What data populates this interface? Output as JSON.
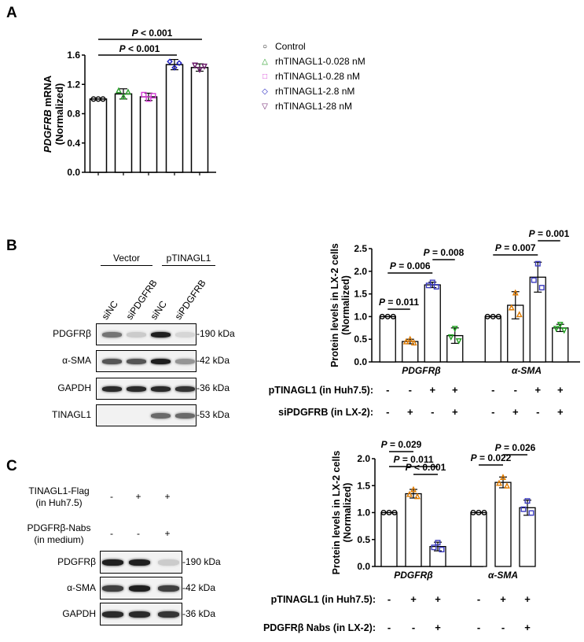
{
  "panels": {
    "A": {
      "letter": "A"
    },
    "B": {
      "letter": "B"
    },
    "C": {
      "letter": "C"
    }
  },
  "chart_data": [
    {
      "id": "A",
      "type": "bar",
      "title": "",
      "ylabel": "PDGFRB mRNA (Normalized)",
      "ylabel_italic_part": "PDGFRB",
      "ylabel_rest": " mRNA",
      "ylabel_line2": "(Normalized)",
      "ylim": [
        0,
        1.6
      ],
      "yticks": [
        "0.0",
        "0.4",
        "0.8",
        "1.2",
        "1.6"
      ],
      "categories": [
        "Control",
        "rhTINAGL1-0.028 nM",
        "rhTINAGL1-0.28 nM",
        "rhTINAGL1-2.8 nM",
        "rhTINAGL1-28 nM"
      ],
      "values": [
        1.0,
        1.07,
        1.03,
        1.47,
        1.43
      ],
      "errors": [
        0.0,
        0.07,
        0.05,
        0.07,
        0.05
      ],
      "markers": [
        "circle",
        "triangle",
        "square",
        "diamond",
        "triangle-down"
      ],
      "colors": [
        "#000000",
        "#2ca02c",
        "#d63fd6",
        "#1f1fbf",
        "#6a1b6a"
      ],
      "legend": [
        {
          "label": "Control",
          "marker": "circle",
          "color": "#000000"
        },
        {
          "label": "rhTINAGL1-0.028 nM",
          "marker": "triangle",
          "color": "#2ca02c"
        },
        {
          "label": "rhTINAGL1-0.28 nM",
          "marker": "square",
          "color": "#d63fd6"
        },
        {
          "label": "rhTINAGL1-2.8 nM",
          "marker": "diamond",
          "color": "#1f1fbf"
        },
        {
          "label": "rhTINAGL1-28 nM",
          "marker": "triangle-down",
          "color": "#6a1b6a"
        }
      ],
      "annotations": [
        {
          "text": "P < 0.001",
          "from": 0,
          "to": 3
        },
        {
          "text": "P < 0.001",
          "from": 0,
          "to": 4
        }
      ]
    },
    {
      "id": "B",
      "type": "bar",
      "ylabel": "Protein levels in LX-2 cells",
      "ylabel_line2": "(Normalized)",
      "ylim": [
        0,
        2.5
      ],
      "yticks": [
        "0.0",
        "0.5",
        "1.0",
        "1.5",
        "2.0",
        "2.5"
      ],
      "groups": [
        "PDGFRβ",
        "α-SMA"
      ],
      "series": [
        {
          "name": "Vector + siNC",
          "values": [
            1.0,
            1.0
          ],
          "errors": [
            0.0,
            0.0
          ],
          "color": "#000000",
          "marker": "circle"
        },
        {
          "name": "Vector + siPDGFRB",
          "values": [
            0.45,
            1.25
          ],
          "errors": [
            0.05,
            0.3
          ],
          "color": "#e07b00",
          "marker": "triangle"
        },
        {
          "name": "pTINAGL1 + siNC",
          "values": [
            1.7,
            1.87
          ],
          "errors": [
            0.06,
            0.33
          ],
          "color": "#3b3bbf",
          "marker": "square"
        },
        {
          "name": "pTINAGL1 + siPDGFRB",
          "values": [
            0.58,
            0.75
          ],
          "errors": [
            0.17,
            0.08
          ],
          "color": "#1fa01f",
          "marker": "triangle-down"
        }
      ],
      "annotations": [
        {
          "text": "P = 0.011",
          "group": 0,
          "from": 0,
          "to": 1
        },
        {
          "text": "P = 0.006",
          "group": 0,
          "from": 0,
          "to": 2
        },
        {
          "text": "P = 0.008",
          "group": 0,
          "from": 2,
          "to": 3
        },
        {
          "text": "P = 0.007",
          "group": 1,
          "from": 0,
          "to": 2
        },
        {
          "text": "P = 0.001",
          "group": 1,
          "from": 2,
          "to": 3
        }
      ],
      "conditions": [
        {
          "label": "pTINAGL1 (in Huh7.5):",
          "values": [
            "-",
            "-",
            "+",
            "+",
            "-",
            "-",
            "+",
            "+"
          ]
        },
        {
          "label": "siPDGFRB (in LX-2):",
          "values": [
            "-",
            "+",
            "-",
            "+",
            "-",
            "+",
            "-",
            "+"
          ]
        }
      ]
    },
    {
      "id": "C",
      "type": "bar",
      "ylabel": "Protein levels in LX-2 cells",
      "ylabel_line2": "(Normalized)",
      "ylim": [
        0,
        2.0
      ],
      "yticks": [
        "0.0",
        "0.5",
        "1.0",
        "1.5",
        "2.0"
      ],
      "groups": [
        "PDGFRβ",
        "α-SMA"
      ],
      "series": [
        {
          "name": "Control",
          "values": [
            1.0,
            1.0
          ],
          "errors": [
            0.0,
            0.0
          ],
          "color": "#000000",
          "marker": "circle"
        },
        {
          "name": "pTINAGL1",
          "values": [
            1.35,
            1.56
          ],
          "errors": [
            0.08,
            0.1
          ],
          "color": "#e07b00",
          "marker": "triangle"
        },
        {
          "name": "pTINAGL1 + PDGFRβ Nabs",
          "values": [
            0.37,
            1.09
          ],
          "errors": [
            0.08,
            0.14
          ],
          "color": "#3b3bbf",
          "marker": "square"
        }
      ],
      "annotations": [
        {
          "text": "P = 0.029",
          "group": 0,
          "from": 0,
          "to": 1
        },
        {
          "text": "P = 0.011",
          "group": 0,
          "from": 0,
          "to": 2
        },
        {
          "text": "P < 0.001",
          "group": 0,
          "from": 1,
          "to": 2
        },
        {
          "text": "P = 0.022",
          "group": 1,
          "from": 0,
          "to": 1
        },
        {
          "text": "P = 0.026",
          "group": 1,
          "from": 1,
          "to": 2
        }
      ],
      "conditions": [
        {
          "label": "pTINAGL1 (in Huh7.5):",
          "values": [
            "-",
            "+",
            "+",
            "-",
            "+",
            "+"
          ]
        },
        {
          "label": "PDGFRβ Nabs (in LX-2):",
          "values": [
            "-",
            "-",
            "+",
            "-",
            "-",
            "+"
          ]
        }
      ]
    }
  ],
  "western_B": {
    "header_groups": [
      {
        "label": "Vector"
      },
      {
        "label": "pTINAGL1"
      }
    ],
    "lanes": [
      "siNC",
      "siPDGFRB",
      "siNC",
      "siPDGFRB"
    ],
    "rows": [
      {
        "protein": "PDGFRβ",
        "kda": "-190 kDa",
        "intensity": [
          0.55,
          0.15,
          0.95,
          0.1
        ]
      },
      {
        "protein": "α-SMA",
        "kda": "-42 kDa",
        "intensity": [
          0.7,
          0.7,
          0.95,
          0.4
        ]
      },
      {
        "protein": "GAPDH",
        "kda": "-36 kDa",
        "intensity": [
          0.9,
          0.9,
          0.9,
          0.85
        ]
      },
      {
        "protein": "TINAGL1",
        "kda": "-53 kDa",
        "intensity": [
          0.0,
          0.0,
          0.6,
          0.6
        ]
      }
    ]
  },
  "western_C": {
    "conditions": [
      {
        "label_line1": "TINAGL1-Flag",
        "label_line2": "(in Huh7.5)",
        "values": [
          "-",
          "+",
          "+"
        ]
      },
      {
        "label_line1": "PDGFRβ-Nabs",
        "label_line2": "(in medium)",
        "values": [
          "-",
          "-",
          "+"
        ]
      }
    ],
    "rows": [
      {
        "protein": "PDGFRβ",
        "kda": "-190 kDa",
        "intensity": [
          0.95,
          0.95,
          0.15
        ]
      },
      {
        "protein": "α-SMA",
        "kda": "-42 kDa",
        "intensity": [
          0.8,
          0.95,
          0.8
        ]
      },
      {
        "protein": "GAPDH",
        "kda": "-36 kDa",
        "intensity": [
          0.9,
          0.9,
          0.85
        ]
      }
    ]
  }
}
